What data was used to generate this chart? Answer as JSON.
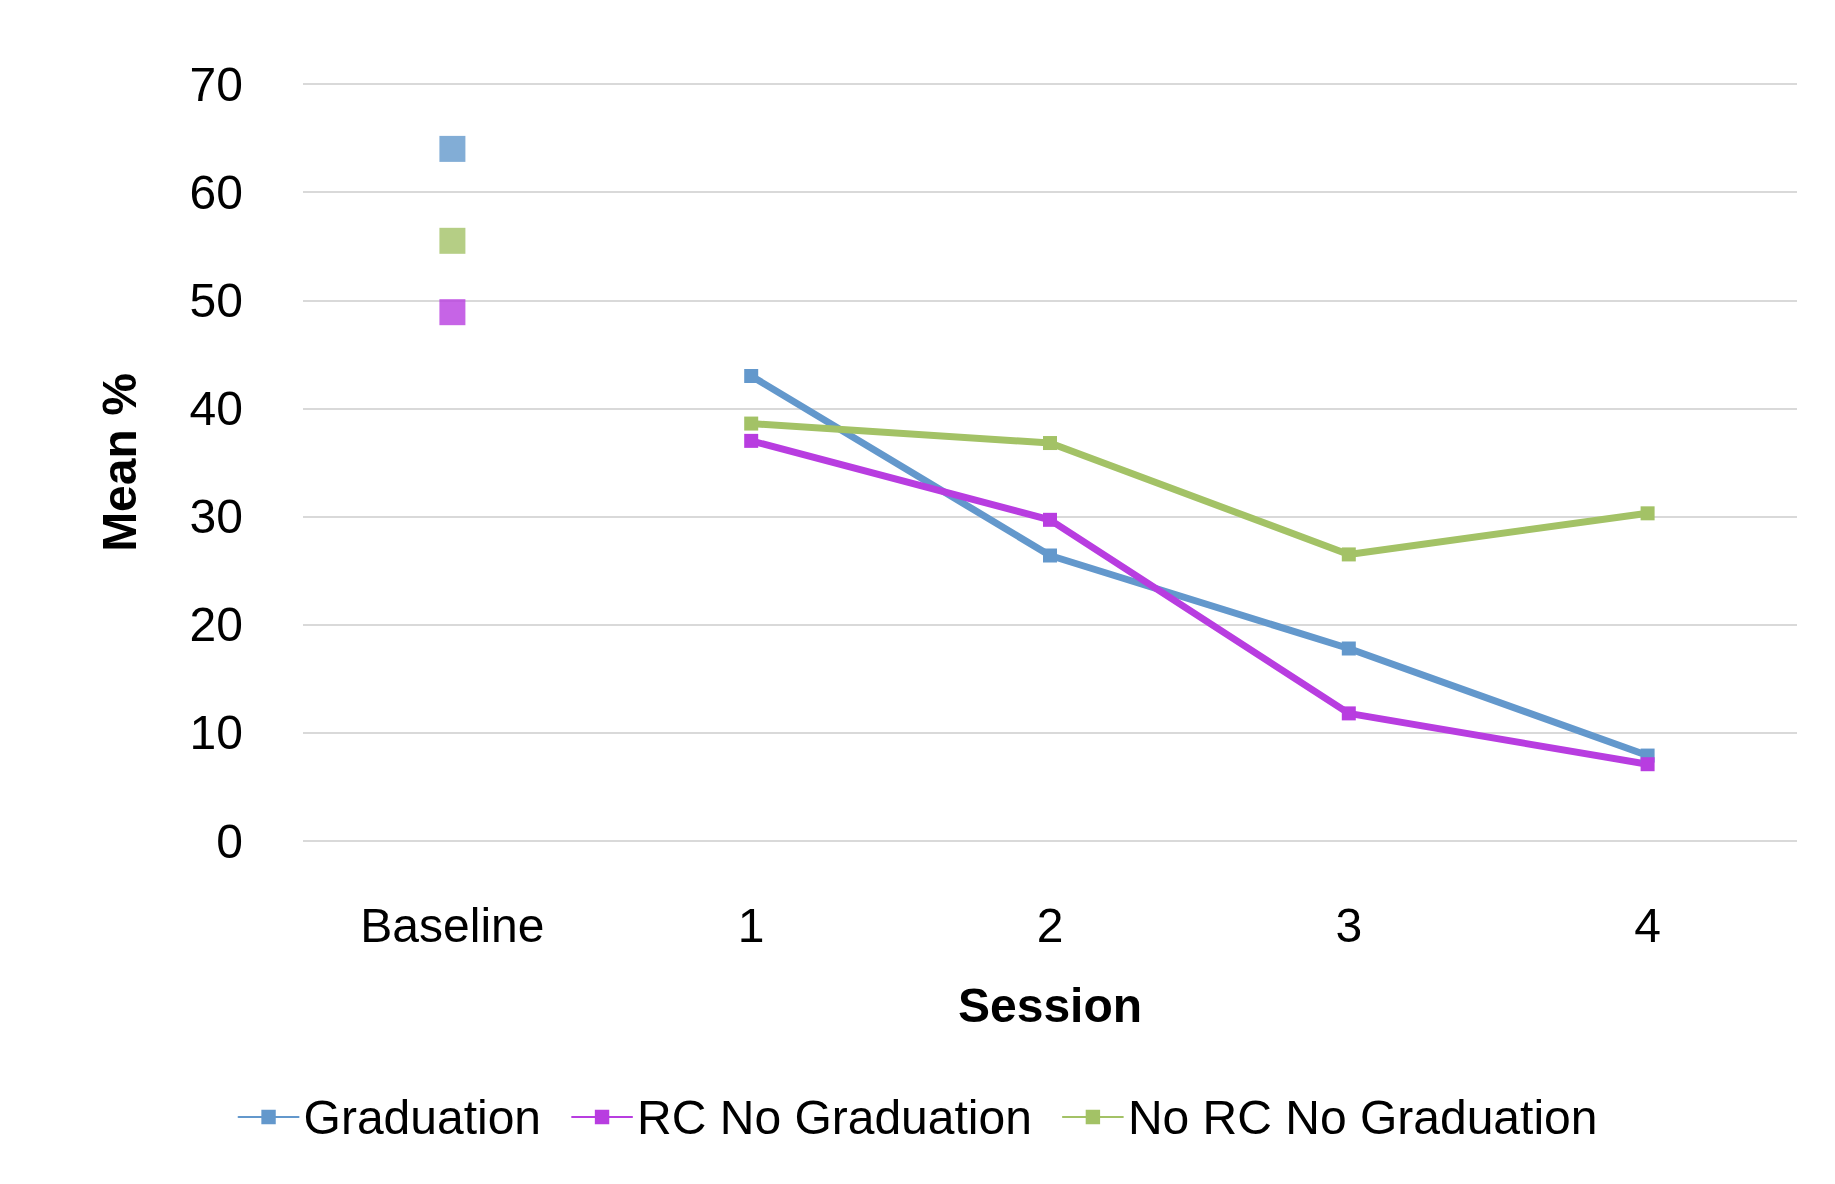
{
  "chart_data": {
    "type": "line",
    "xlabel": "Session",
    "ylabel": "Mean %",
    "categories": [
      "Baseline",
      "1",
      "2",
      "3",
      "4"
    ],
    "series": [
      {
        "name": "Graduation",
        "color": "#6398cc",
        "values": [
          null,
          43.0,
          26.4,
          17.8,
          7.9
        ]
      },
      {
        "name": "RC No Graduation",
        "color": "#b83de0",
        "values": [
          null,
          37.0,
          29.7,
          11.8,
          7.1
        ]
      },
      {
        "name": "No RC No Graduation",
        "color": "#a3c266",
        "values": [
          null,
          38.6,
          36.8,
          26.5,
          30.3
        ]
      },
      {
        "type": "scatter",
        "color": "#6398cc",
        "x": [
          "Baseline"
        ],
        "values": [
          64.0
        ]
      },
      {
        "type": "scatter",
        "color": "#b83de0",
        "x": [
          "Baseline"
        ],
        "values": [
          48.9
        ]
      },
      {
        "type": "scatter",
        "color": "#a3c266",
        "x": [
          "Baseline"
        ],
        "values": [
          55.5
        ]
      }
    ],
    "ylim": [
      0,
      70
    ],
    "yticks": [
      0,
      10,
      20,
      30,
      40,
      50,
      60,
      70
    ],
    "grid": "y",
    "legend": "bottom",
    "marker": "square",
    "line_style": "solid"
  }
}
